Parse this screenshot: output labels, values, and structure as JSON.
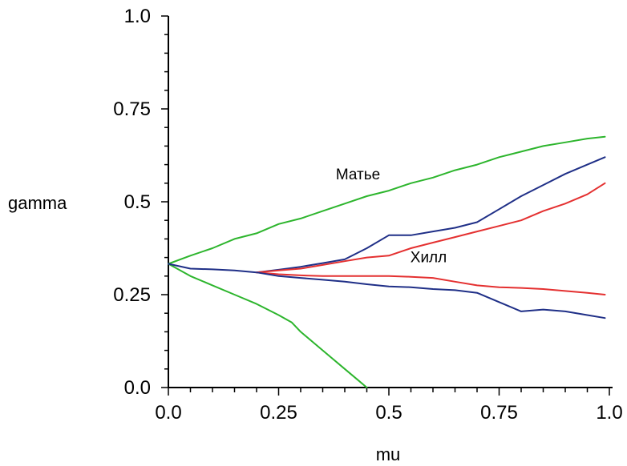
{
  "chart_data": {
    "type": "line",
    "title": "",
    "xlabel": "mu",
    "ylabel": "gamma",
    "xlim": [
      0.0,
      1.0
    ],
    "ylim": [
      0.0,
      1.0
    ],
    "grid": false,
    "x_ticks": [
      "0.0",
      "0.25",
      "0.5",
      "0.75",
      "1.0"
    ],
    "y_ticks": [
      "0.0",
      "0.25",
      "0.5",
      "0.75",
      "1.0"
    ],
    "annotations": [
      {
        "text": "Матье",
        "x": 0.43,
        "y": 0.56
      },
      {
        "text": "Хилл",
        "x": 0.59,
        "y": 0.337
      }
    ],
    "series": [
      {
        "color": "#2db52d",
        "x": [
          0.0,
          0.05,
          0.1,
          0.15,
          0.2,
          0.25,
          0.3,
          0.35,
          0.4,
          0.45,
          0.5,
          0.55,
          0.6,
          0.65,
          0.7,
          0.75,
          0.8,
          0.85,
          0.9,
          0.95,
          0.99
        ],
        "values": [
          0.333,
          0.355,
          0.375,
          0.4,
          0.415,
          0.44,
          0.455,
          0.475,
          0.495,
          0.515,
          0.53,
          0.55,
          0.565,
          0.585,
          0.6,
          0.62,
          0.635,
          0.65,
          0.66,
          0.67,
          0.675
        ]
      },
      {
        "color": "#2db52d",
        "x": [
          0.0,
          0.05,
          0.1,
          0.15,
          0.2,
          0.25,
          0.28,
          0.3,
          0.35,
          0.4,
          0.43,
          0.45
        ],
        "values": [
          0.333,
          0.3,
          0.275,
          0.25,
          0.225,
          0.195,
          0.175,
          0.15,
          0.1,
          0.05,
          0.02,
          0.0
        ]
      },
      {
        "color": "#1f2f87",
        "x": [
          0.0,
          0.05,
          0.1,
          0.15,
          0.2,
          0.25,
          0.3,
          0.35,
          0.4,
          0.45,
          0.5,
          0.55,
          0.6,
          0.65,
          0.7,
          0.75,
          0.8,
          0.85,
          0.9,
          0.95,
          0.99
        ],
        "values": [
          0.333,
          0.32,
          0.318,
          0.315,
          0.31,
          0.317,
          0.325,
          0.335,
          0.345,
          0.375,
          0.41,
          0.41,
          0.42,
          0.43,
          0.445,
          0.48,
          0.515,
          0.545,
          0.575,
          0.6,
          0.62
        ]
      },
      {
        "color": "#e43030",
        "x": [
          0.2,
          0.25,
          0.3,
          0.35,
          0.4,
          0.45,
          0.5,
          0.55,
          0.6,
          0.65,
          0.7,
          0.75,
          0.8,
          0.85,
          0.9,
          0.95,
          0.99
        ],
        "values": [
          0.31,
          0.315,
          0.32,
          0.33,
          0.34,
          0.35,
          0.355,
          0.375,
          0.39,
          0.405,
          0.42,
          0.435,
          0.45,
          0.475,
          0.495,
          0.52,
          0.55
        ]
      },
      {
        "color": "#e43030",
        "x": [
          0.2,
          0.25,
          0.3,
          0.35,
          0.4,
          0.45,
          0.5,
          0.55,
          0.6,
          0.65,
          0.7,
          0.75,
          0.8,
          0.85,
          0.9,
          0.95,
          0.99
        ],
        "values": [
          0.31,
          0.305,
          0.302,
          0.3,
          0.3,
          0.3,
          0.3,
          0.298,
          0.295,
          0.285,
          0.275,
          0.27,
          0.268,
          0.265,
          0.26,
          0.255,
          0.25
        ]
      },
      {
        "color": "#1f2f87",
        "x": [
          0.2,
          0.25,
          0.3,
          0.35,
          0.4,
          0.45,
          0.5,
          0.55,
          0.6,
          0.65,
          0.7,
          0.75,
          0.8,
          0.85,
          0.9,
          0.95,
          0.99
        ],
        "values": [
          0.31,
          0.3,
          0.295,
          0.29,
          0.285,
          0.278,
          0.272,
          0.27,
          0.265,
          0.262,
          0.255,
          0.23,
          0.205,
          0.21,
          0.205,
          0.195,
          0.187
        ]
      }
    ]
  }
}
